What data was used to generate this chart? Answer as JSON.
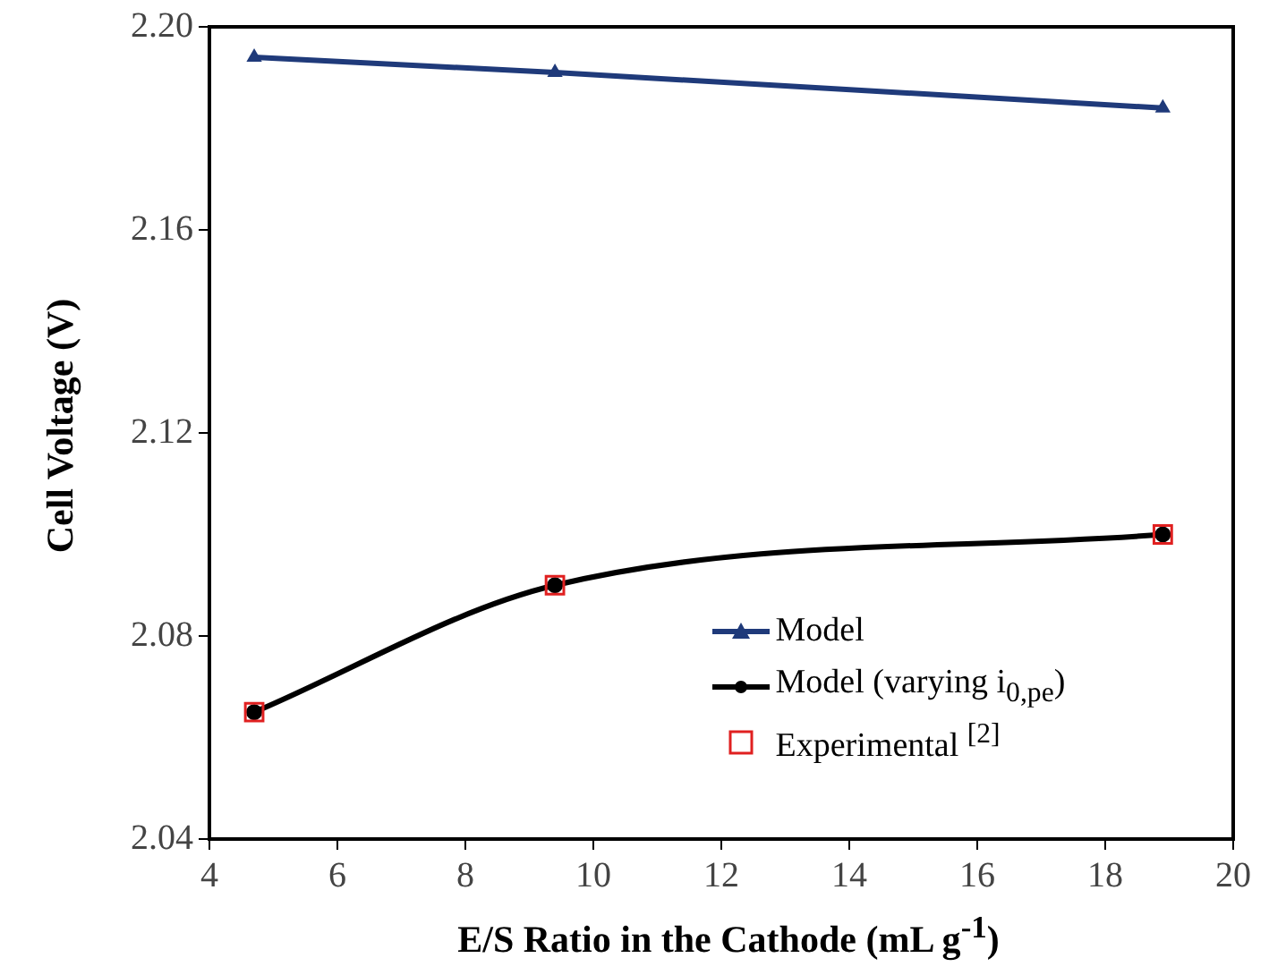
{
  "chart_data": {
    "type": "line",
    "xlabel": "E/S Ratio in the Cathode (mL g$^{-1}$)",
    "ylabel": "Cell Voltage (V)",
    "x": [
      4.7,
      9.4,
      18.9
    ],
    "series": [
      {
        "name": "Model",
        "color": "#1f3a7a",
        "values": [
          2.194,
          2.191,
          2.184
        ],
        "marker": "triangle"
      },
      {
        "name": "Model (varying i$_{0,pe}$)",
        "color": "#000000",
        "values": [
          2.065,
          2.09,
          2.1
        ],
        "marker": "circle"
      },
      {
        "name": "Experimental $^{[2]}$",
        "type": "scatter",
        "color": "#e02020",
        "values": [
          2.065,
          2.09,
          2.1
        ],
        "marker": "square"
      }
    ],
    "xlim": [
      4,
      20
    ],
    "xticks": [
      4,
      6,
      8,
      10,
      12,
      14,
      16,
      18,
      20
    ],
    "ylim": [
      2.04,
      2.2
    ],
    "yticks": [
      {
        "value": 2.04,
        "label": "2.04"
      },
      {
        "value": 2.08,
        "label": "2.08"
      },
      {
        "value": 2.12,
        "label": "2.12"
      },
      {
        "value": 2.16,
        "label": "2.16"
      },
      {
        "value": 2.2,
        "label": "2.20"
      }
    ],
    "grid": false,
    "legend": "bottom right"
  }
}
